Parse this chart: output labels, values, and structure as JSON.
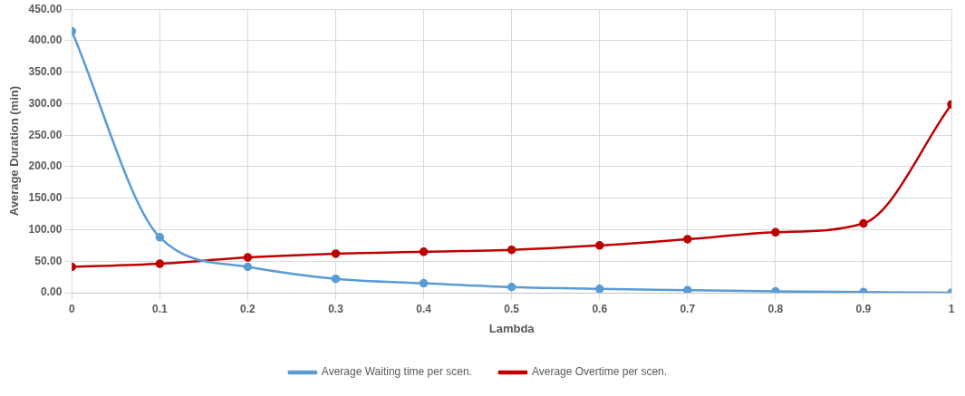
{
  "chart_data": {
    "type": "line",
    "xlabel": "Lambda",
    "ylabel": "Average Duration (min)",
    "x": [
      0,
      0.1,
      0.2,
      0.3,
      0.4,
      0.5,
      0.6,
      0.7,
      0.8,
      0.9,
      1
    ],
    "series": [
      {
        "name": "Average Waiting time per scen.",
        "color": "#5b9bd5",
        "values": [
          415,
          88,
          41,
          22,
          15,
          9,
          6,
          4,
          2,
          1,
          0
        ]
      },
      {
        "name": "Average Overtime per scen.",
        "color": "#c00000",
        "values": [
          41,
          46,
          56,
          62,
          65,
          68,
          75,
          85,
          96,
          110,
          299
        ]
      }
    ],
    "xlim": [
      0,
      1
    ],
    "xticks": [
      0,
      0.1,
      0.2,
      0.3,
      0.4,
      0.5,
      0.6,
      0.7,
      0.8,
      0.9,
      1
    ],
    "ylim": [
      0,
      450
    ],
    "yticks": [
      {
        "value": 0,
        "label": "0.00"
      },
      {
        "value": 50,
        "label": "50.00"
      },
      {
        "value": 100,
        "label": "100.00"
      },
      {
        "value": 150,
        "label": "150.00"
      },
      {
        "value": 200,
        "label": "200.00"
      },
      {
        "value": 250,
        "label": "250.00"
      },
      {
        "value": 300,
        "label": "300.00"
      },
      {
        "value": 350,
        "label": "350.00"
      },
      {
        "value": 400,
        "label": "400.00"
      },
      {
        "value": 450,
        "label": "450.00"
      }
    ],
    "grid": true,
    "legend": "bottom",
    "marker": "circle",
    "line_style": "solid"
  }
}
